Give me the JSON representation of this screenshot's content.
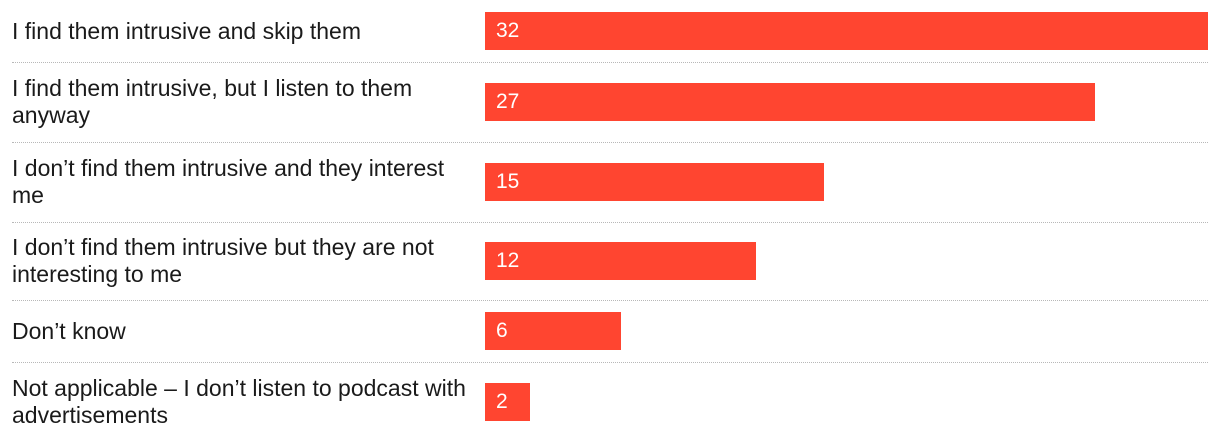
{
  "chart_data": {
    "type": "bar",
    "orientation": "horizontal",
    "title": "",
    "xlabel": "",
    "ylabel": "",
    "xlim": [
      0,
      32
    ],
    "bar_color": "#ff4530",
    "categories": [
      "I find them intrusive and skip them",
      "I find them intrusive, but I listen to them anyway",
      "I don’t find them intrusive and they interest me",
      "I don’t find them intrusive but they are not interesting to me",
      "Don’t know",
      "Not applicable – I don’t listen to podcast with advertisements"
    ],
    "values": [
      32,
      27,
      15,
      12,
      6,
      2
    ]
  }
}
